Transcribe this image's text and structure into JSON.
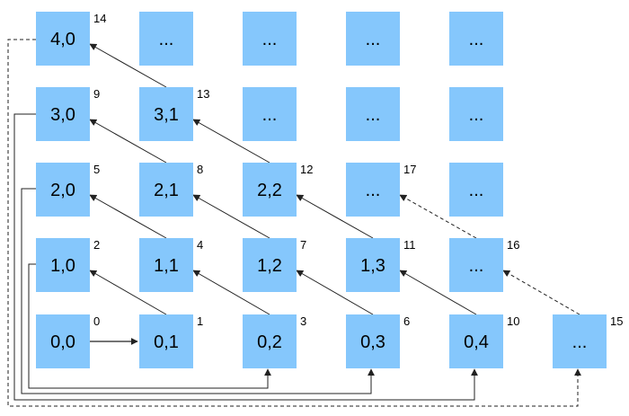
{
  "cells": [
    {
      "id": "c-4-0",
      "label": "4,0",
      "order": "14",
      "row": 4,
      "col": 0
    },
    {
      "id": "c-4-1",
      "label": "...",
      "order": "",
      "row": 4,
      "col": 1
    },
    {
      "id": "c-4-2",
      "label": "...",
      "order": "",
      "row": 4,
      "col": 2
    },
    {
      "id": "c-4-3",
      "label": "...",
      "order": "",
      "row": 4,
      "col": 3
    },
    {
      "id": "c-4-4",
      "label": "...",
      "order": "",
      "row": 4,
      "col": 4
    },
    {
      "id": "c-3-0",
      "label": "3,0",
      "order": "9",
      "row": 3,
      "col": 0
    },
    {
      "id": "c-3-1",
      "label": "3,1",
      "order": "13",
      "row": 3,
      "col": 1
    },
    {
      "id": "c-3-2",
      "label": "...",
      "order": "",
      "row": 3,
      "col": 2
    },
    {
      "id": "c-3-3",
      "label": "...",
      "order": "",
      "row": 3,
      "col": 3
    },
    {
      "id": "c-3-4",
      "label": "...",
      "order": "",
      "row": 3,
      "col": 4
    },
    {
      "id": "c-2-0",
      "label": "2,0",
      "order": "5",
      "row": 2,
      "col": 0
    },
    {
      "id": "c-2-1",
      "label": "2,1",
      "order": "8",
      "row": 2,
      "col": 1
    },
    {
      "id": "c-2-2",
      "label": "2,2",
      "order": "12",
      "row": 2,
      "col": 2
    },
    {
      "id": "c-2-3",
      "label": "...",
      "order": "17",
      "row": 2,
      "col": 3
    },
    {
      "id": "c-2-4",
      "label": "...",
      "order": "",
      "row": 2,
      "col": 4
    },
    {
      "id": "c-1-0",
      "label": "1,0",
      "order": "2",
      "row": 1,
      "col": 0
    },
    {
      "id": "c-1-1",
      "label": "1,1",
      "order": "4",
      "row": 1,
      "col": 1
    },
    {
      "id": "c-1-2",
      "label": "1,2",
      "order": "7",
      "row": 1,
      "col": 2
    },
    {
      "id": "c-1-3",
      "label": "1,3",
      "order": "11",
      "row": 1,
      "col": 3
    },
    {
      "id": "c-1-4",
      "label": "...",
      "order": "16",
      "row": 1,
      "col": 4
    },
    {
      "id": "c-0-0",
      "label": "0,0",
      "order": "0",
      "row": 0,
      "col": 0
    },
    {
      "id": "c-0-1",
      "label": "0,1",
      "order": "1",
      "row": 0,
      "col": 1
    },
    {
      "id": "c-0-2",
      "label": "0,2",
      "order": "3",
      "row": 0,
      "col": 2
    },
    {
      "id": "c-0-3",
      "label": "0,3",
      "order": "6",
      "row": 0,
      "col": 3
    },
    {
      "id": "c-0-4",
      "label": "0,4",
      "order": "10",
      "row": 0,
      "col": 4
    },
    {
      "id": "c-0-5",
      "label": "...",
      "order": "15",
      "row": 0,
      "col": 5
    }
  ]
}
